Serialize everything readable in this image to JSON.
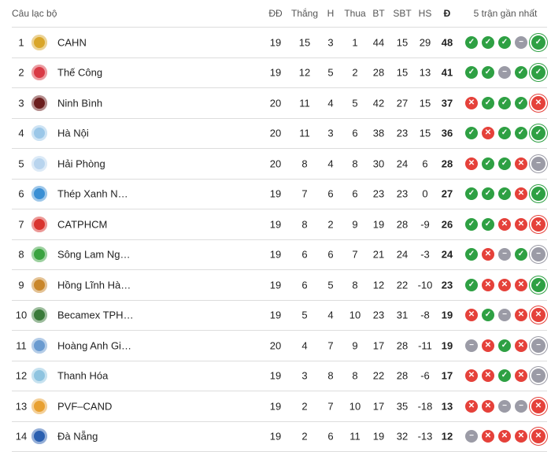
{
  "headers": {
    "club": "Câu lạc bộ",
    "played": "ĐĐ",
    "won": "Thắng",
    "draw": "H",
    "lost": "Thua",
    "gf": "BT",
    "ga": "SBT",
    "gd": "HS",
    "pts": "Đ",
    "form": "5 trận gần nhất"
  },
  "colors": {
    "win": "#2ea043",
    "loss": "#e5413a",
    "draw": "#9b9ba6"
  },
  "rows": [
    {
      "rank": "1",
      "name": "CAHN",
      "logo": "#d9a62a",
      "p": "19",
      "w": "15",
      "d": "3",
      "l": "1",
      "gf": "44",
      "ga": "15",
      "gd": "29",
      "pts": "48",
      "form": [
        "W",
        "W",
        "W",
        "D",
        "W"
      ]
    },
    {
      "rank": "2",
      "name": "Thế Công",
      "logo": "#d93a45",
      "p": "19",
      "w": "12",
      "d": "5",
      "l": "2",
      "gf": "28",
      "ga": "15",
      "gd": "13",
      "pts": "41",
      "form": [
        "W",
        "W",
        "D",
        "W",
        "W"
      ]
    },
    {
      "rank": "3",
      "name": "Ninh Bình",
      "logo": "#6b1d1d",
      "p": "20",
      "w": "11",
      "d": "4",
      "l": "5",
      "gf": "42",
      "ga": "27",
      "gd": "15",
      "pts": "37",
      "form": [
        "L",
        "W",
        "W",
        "W",
        "L"
      ]
    },
    {
      "rank": "4",
      "name": "Hà Nội",
      "logo": "#9bc7e8",
      "p": "20",
      "w": "11",
      "d": "3",
      "l": "6",
      "gf": "38",
      "ga": "23",
      "gd": "15",
      "pts": "36",
      "form": [
        "W",
        "L",
        "W",
        "W",
        "W"
      ]
    },
    {
      "rank": "5",
      "name": "Hải Phòng",
      "logo": "#b8d4ee",
      "p": "20",
      "w": "8",
      "d": "4",
      "l": "8",
      "gf": "30",
      "ga": "24",
      "gd": "6",
      "pts": "28",
      "form": [
        "L",
        "W",
        "W",
        "L",
        "D"
      ]
    },
    {
      "rank": "6",
      "name": "Thép Xanh N…",
      "logo": "#3a8fd4",
      "p": "19",
      "w": "7",
      "d": "6",
      "l": "6",
      "gf": "23",
      "ga": "23",
      "gd": "0",
      "pts": "27",
      "form": [
        "W",
        "W",
        "W",
        "L",
        "W"
      ]
    },
    {
      "rank": "7",
      "name": "CATPHCM",
      "logo": "#d9332e",
      "p": "19",
      "w": "8",
      "d": "2",
      "l": "9",
      "gf": "19",
      "ga": "28",
      "gd": "-9",
      "pts": "26",
      "form": [
        "W",
        "W",
        "L",
        "L",
        "L"
      ]
    },
    {
      "rank": "8",
      "name": "Sông Lam Ng…",
      "logo": "#3aa340",
      "p": "19",
      "w": "6",
      "d": "6",
      "l": "7",
      "gf": "21",
      "ga": "24",
      "gd": "-3",
      "pts": "24",
      "form": [
        "W",
        "L",
        "D",
        "W",
        "D"
      ]
    },
    {
      "rank": "9",
      "name": "Hồng Lĩnh Hà…",
      "logo": "#c9862a",
      "p": "19",
      "w": "6",
      "d": "5",
      "l": "8",
      "gf": "12",
      "ga": "22",
      "gd": "-10",
      "pts": "23",
      "form": [
        "W",
        "L",
        "L",
        "L",
        "W"
      ]
    },
    {
      "rank": "10",
      "name": "Becamex TPH…",
      "logo": "#3a7a3a",
      "p": "19",
      "w": "5",
      "d": "4",
      "l": "10",
      "gf": "23",
      "ga": "31",
      "gd": "-8",
      "pts": "19",
      "form": [
        "L",
        "W",
        "D",
        "L",
        "L"
      ]
    },
    {
      "rank": "11",
      "name": "Hoàng Anh Gi…",
      "logo": "#6a9bd0",
      "p": "20",
      "w": "4",
      "d": "7",
      "l": "9",
      "gf": "17",
      "ga": "28",
      "gd": "-11",
      "pts": "19",
      "form": [
        "D",
        "L",
        "W",
        "L",
        "D"
      ]
    },
    {
      "rank": "12",
      "name": "Thanh Hóa",
      "logo": "#8fc4e0",
      "p": "19",
      "w": "3",
      "d": "8",
      "l": "8",
      "gf": "22",
      "ga": "28",
      "gd": "-6",
      "pts": "17",
      "form": [
        "L",
        "L",
        "W",
        "L",
        "D"
      ]
    },
    {
      "rank": "13",
      "name": "PVF–CAND",
      "logo": "#e8a030",
      "p": "19",
      "w": "2",
      "d": "7",
      "l": "10",
      "gf": "17",
      "ga": "35",
      "gd": "-18",
      "pts": "13",
      "form": [
        "L",
        "L",
        "D",
        "D",
        "L"
      ]
    },
    {
      "rank": "14",
      "name": "Đà Nẵng",
      "logo": "#2a5fb0",
      "p": "19",
      "w": "2",
      "d": "6",
      "l": "11",
      "gf": "19",
      "ga": "32",
      "gd": "-13",
      "pts": "12",
      "form": [
        "D",
        "L",
        "L",
        "L",
        "L"
      ]
    }
  ]
}
